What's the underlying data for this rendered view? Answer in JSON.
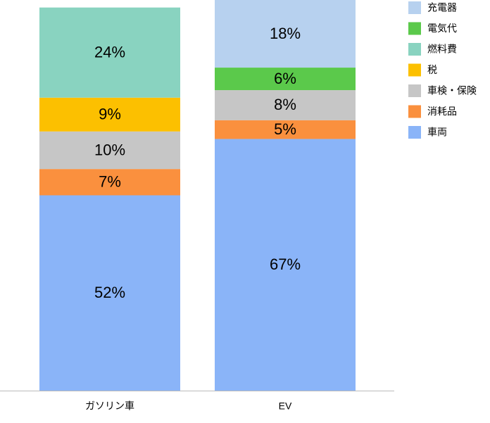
{
  "chart_data": {
    "type": "stacked-bar",
    "categories": [
      "ガソリン車",
      "EV"
    ],
    "ylim": [
      0,
      104
    ],
    "series": [
      {
        "name": "車両",
        "color": "#8ab4f8",
        "values": [
          52,
          67
        ],
        "value_labels": [
          "52%",
          "67%"
        ]
      },
      {
        "name": "消耗品",
        "color": "#fa903e",
        "values": [
          7,
          5
        ],
        "value_labels": [
          "7%",
          "5%"
        ]
      },
      {
        "name": "車検・保険",
        "color": "#c6c6c6",
        "values": [
          10,
          8
        ],
        "value_labels": [
          "10%",
          "8%"
        ]
      },
      {
        "name": "税",
        "color": "#fcc000",
        "values": [
          9,
          null
        ],
        "value_labels": [
          "9%",
          null
        ]
      },
      {
        "name": "燃料費",
        "color": "#89d3c0",
        "values": [
          24,
          null
        ],
        "value_labels": [
          "24%",
          null
        ]
      },
      {
        "name": "電気代",
        "color": "#5bc94b",
        "values": [
          null,
          6
        ],
        "value_labels": [
          null,
          "6%"
        ]
      },
      {
        "name": "充電器",
        "color": "#b7d1ef",
        "values": [
          null,
          18
        ],
        "value_labels": [
          null,
          "18%"
        ]
      }
    ],
    "legend": "right"
  }
}
